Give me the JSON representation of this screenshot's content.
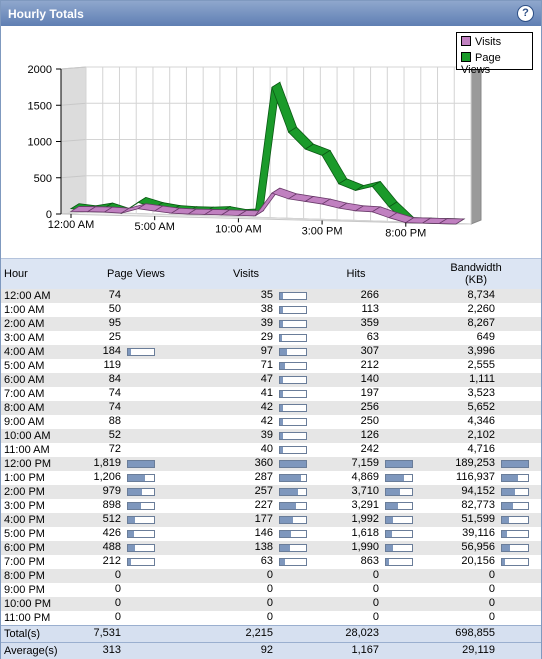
{
  "title": "Hourly Totals",
  "help_icon": "help-icon",
  "colors": {
    "visits": "#c080c0",
    "page_views": "#1a9a2a",
    "bar_fill": "#7e97bd"
  },
  "chart_data": {
    "type": "line",
    "legend": [
      "Visits",
      "Page Views"
    ],
    "legend_position": "top-right",
    "y_ticks": [
      "2000",
      "1500",
      "1000",
      "500",
      "0"
    ],
    "x_tick_labels": [
      "12:00 AM",
      "5:00 AM",
      "10:00 AM",
      "3:00 PM",
      "8:00 PM"
    ],
    "ylim": [
      0,
      2000
    ],
    "x": [
      "12:00 AM",
      "1:00 AM",
      "2:00 AM",
      "3:00 AM",
      "4:00 AM",
      "5:00 AM",
      "6:00 AM",
      "7:00 AM",
      "8:00 AM",
      "9:00 AM",
      "10:00 AM",
      "11:00 AM",
      "12:00 PM",
      "1:00 PM",
      "2:00 PM",
      "3:00 PM",
      "4:00 PM",
      "5:00 PM",
      "6:00 PM",
      "7:00 PM",
      "8:00 PM",
      "9:00 PM",
      "10:00 PM",
      "11:00 PM"
    ],
    "series": [
      {
        "name": "Visits",
        "values": [
          35,
          38,
          39,
          29,
          97,
          71,
          47,
          41,
          42,
          42,
          39,
          40,
          360,
          287,
          257,
          227,
          177,
          146,
          138,
          63,
          0,
          0,
          0,
          0
        ]
      },
      {
        "name": "Page Views",
        "values": [
          74,
          50,
          95,
          25,
          184,
          119,
          84,
          74,
          74,
          88,
          52,
          72,
          1819,
          1206,
          979,
          898,
          512,
          426,
          488,
          212,
          0,
          0,
          0,
          0
        ]
      }
    ],
    "grid": true
  },
  "table": {
    "headers": {
      "hour": "Hour",
      "page_views": "Page Views",
      "visits": "Visits",
      "hits": "Hits",
      "bandwidth": "Bandwidth",
      "bandwidth_unit": "(KB)"
    },
    "rows": [
      {
        "hour": "12:00 AM",
        "pv": "74",
        "v": "35",
        "h": "266",
        "bw": "8,734"
      },
      {
        "hour": "1:00 AM",
        "pv": "50",
        "v": "38",
        "h": "113",
        "bw": "2,260"
      },
      {
        "hour": "2:00 AM",
        "pv": "95",
        "v": "39",
        "h": "359",
        "bw": "8,267"
      },
      {
        "hour": "3:00 AM",
        "pv": "25",
        "v": "29",
        "h": "63",
        "bw": "649"
      },
      {
        "hour": "4:00 AM",
        "pv": "184",
        "v": "97",
        "h": "307",
        "bw": "3,996"
      },
      {
        "hour": "5:00 AM",
        "pv": "119",
        "v": "71",
        "h": "212",
        "bw": "2,555"
      },
      {
        "hour": "6:00 AM",
        "pv": "84",
        "v": "47",
        "h": "140",
        "bw": "1,111"
      },
      {
        "hour": "7:00 AM",
        "pv": "74",
        "v": "41",
        "h": "197",
        "bw": "3,523"
      },
      {
        "hour": "8:00 AM",
        "pv": "74",
        "v": "42",
        "h": "256",
        "bw": "5,652"
      },
      {
        "hour": "9:00 AM",
        "pv": "88",
        "v": "42",
        "h": "250",
        "bw": "4,346"
      },
      {
        "hour": "10:00 AM",
        "pv": "52",
        "v": "39",
        "h": "126",
        "bw": "2,102"
      },
      {
        "hour": "11:00 AM",
        "pv": "72",
        "v": "40",
        "h": "242",
        "bw": "4,716"
      },
      {
        "hour": "12:00 PM",
        "pv": "1,819",
        "v": "360",
        "h": "7,159",
        "bw": "189,253"
      },
      {
        "hour": "1:00 PM",
        "pv": "1,206",
        "v": "287",
        "h": "4,869",
        "bw": "116,937"
      },
      {
        "hour": "2:00 PM",
        "pv": "979",
        "v": "257",
        "h": "3,710",
        "bw": "94,152"
      },
      {
        "hour": "3:00 PM",
        "pv": "898",
        "v": "227",
        "h": "3,291",
        "bw": "82,773"
      },
      {
        "hour": "4:00 PM",
        "pv": "512",
        "v": "177",
        "h": "1,992",
        "bw": "51,599"
      },
      {
        "hour": "5:00 PM",
        "pv": "426",
        "v": "146",
        "h": "1,618",
        "bw": "39,116"
      },
      {
        "hour": "6:00 PM",
        "pv": "488",
        "v": "138",
        "h": "1,990",
        "bw": "56,956"
      },
      {
        "hour": "7:00 PM",
        "pv": "212",
        "v": "63",
        "h": "863",
        "bw": "20,156"
      },
      {
        "hour": "8:00 PM",
        "pv": "0",
        "v": "0",
        "h": "0",
        "bw": "0"
      },
      {
        "hour": "9:00 PM",
        "pv": "0",
        "v": "0",
        "h": "0",
        "bw": "0"
      },
      {
        "hour": "10:00 PM",
        "pv": "0",
        "v": "0",
        "h": "0",
        "bw": "0"
      },
      {
        "hour": "11:00 PM",
        "pv": "0",
        "v": "0",
        "h": "0",
        "bw": "0"
      }
    ],
    "totals": {
      "label": "Total(s)",
      "pv": "7,531",
      "v": "2,215",
      "h": "28,023",
      "bw": "698,855"
    },
    "averages": {
      "label": "Average(s)",
      "pv": "313",
      "v": "92",
      "h": "1,167",
      "bw": "29,119"
    }
  }
}
